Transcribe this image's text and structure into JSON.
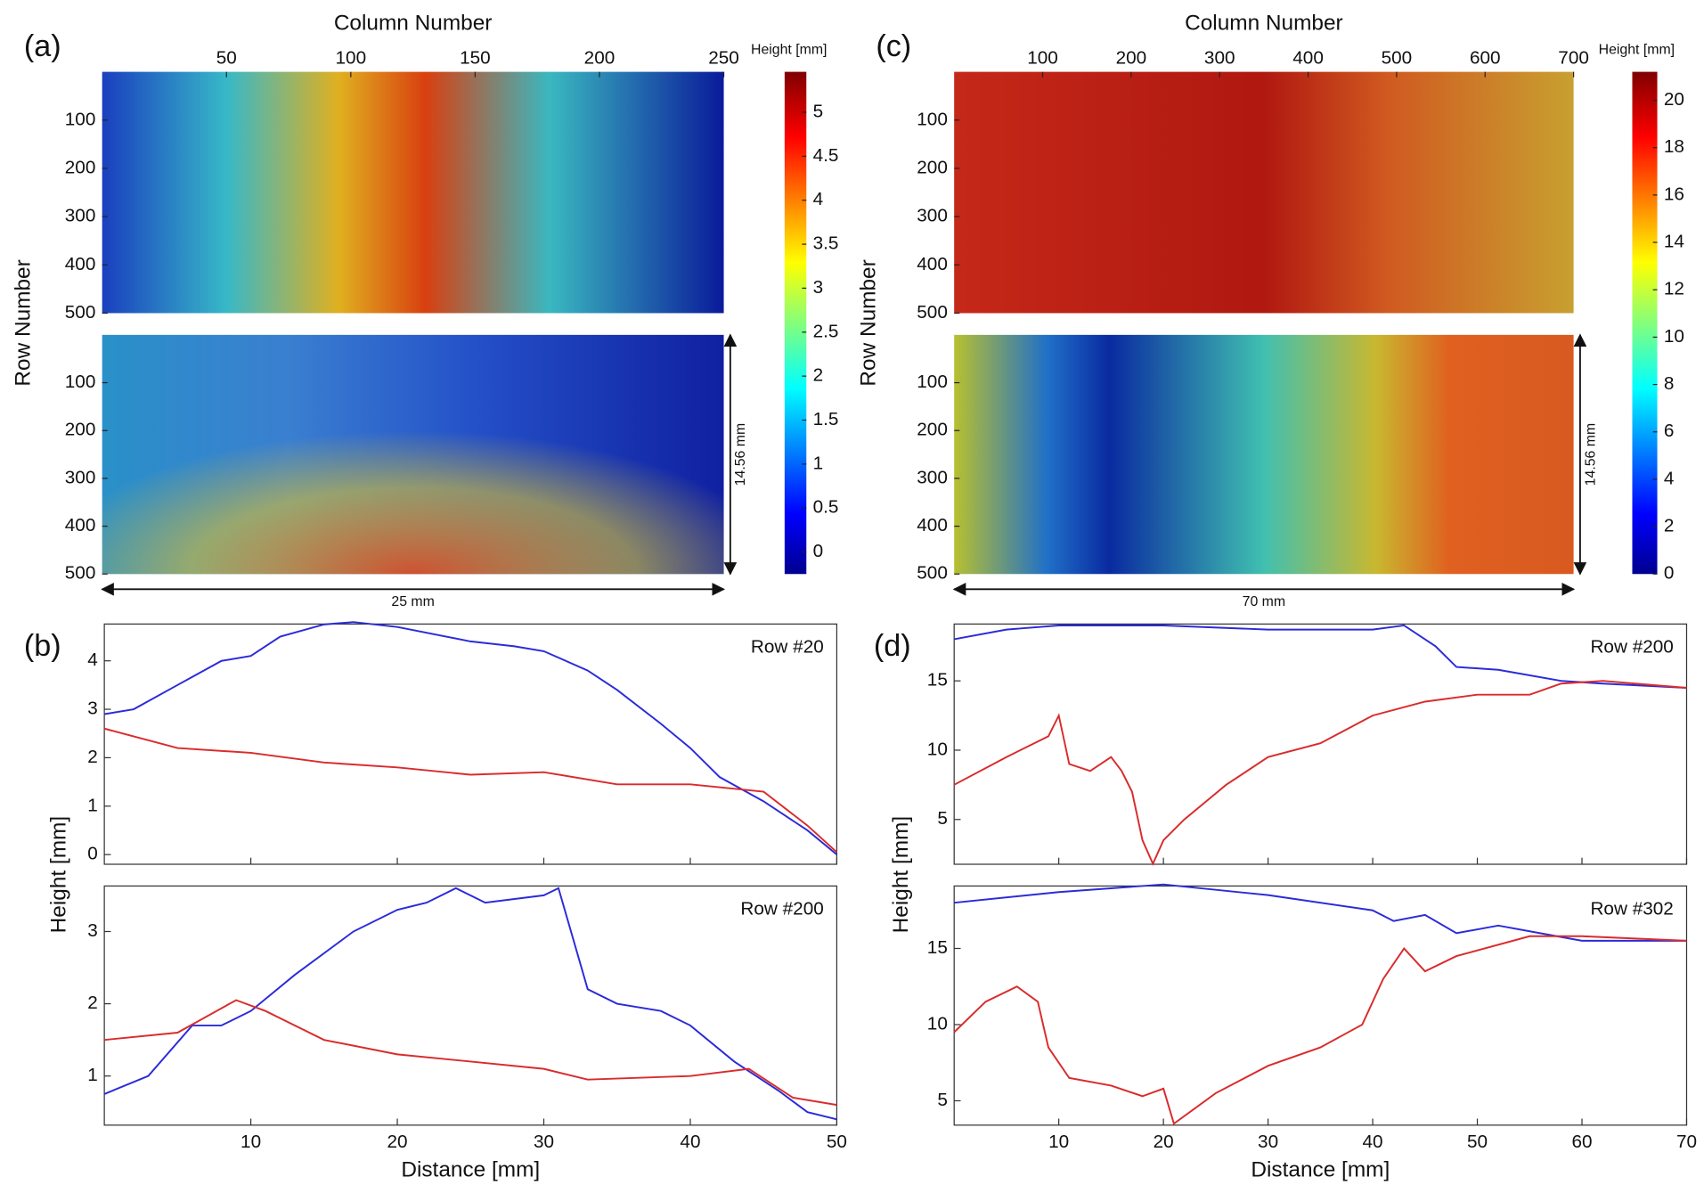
{
  "chart_data": [
    {
      "type": "heatmap",
      "panel_label": "(a)",
      "xlabel": "Column Number",
      "ylabel": "Row Number",
      "xlim": [
        0,
        250
      ],
      "xticks": [
        50,
        100,
        150,
        200,
        250
      ],
      "ylim": [
        0,
        500
      ],
      "yticks": [
        100,
        200,
        300,
        400,
        500
      ],
      "colorbar_label": "Height [mm]",
      "clim": [
        -0.25,
        5.46
      ],
      "cticks": [
        0,
        0.5,
        1,
        1.5,
        2,
        2.5,
        3,
        3.5,
        4,
        4.5,
        5
      ],
      "width_label": "25 mm",
      "height_label": "14.56 mm"
    },
    {
      "type": "line",
      "panel_label": "(b)",
      "xlabel": "Distance [mm]",
      "ylabel": "Height [mm]",
      "xlim": [
        0,
        50
      ],
      "xticks": [
        10,
        20,
        30,
        40,
        50
      ],
      "panels": [
        {
          "annotation": "Row #20",
          "ylim": [
            -0.2,
            4.76
          ],
          "yticks": [
            0,
            1,
            2,
            3,
            4
          ],
          "series": [
            {
              "color": "#2b2bd9",
              "x": [
                0,
                2,
                5,
                8,
                10,
                12,
                15,
                17,
                20,
                25,
                28,
                30,
                33,
                35,
                38,
                40,
                42,
                45,
                48,
                50
              ],
              "values": [
                2.9,
                3.0,
                3.5,
                4.0,
                4.1,
                4.5,
                4.75,
                4.8,
                4.7,
                4.4,
                4.3,
                4.2,
                3.8,
                3.4,
                2.7,
                2.2,
                1.6,
                1.1,
                0.5,
                0.0
              ]
            },
            {
              "color": "#d92b2b",
              "x": [
                0,
                5,
                10,
                15,
                20,
                25,
                30,
                35,
                40,
                45,
                48,
                50
              ],
              "values": [
                2.6,
                2.2,
                2.1,
                1.9,
                1.8,
                1.65,
                1.7,
                1.45,
                1.45,
                1.3,
                0.6,
                0.05
              ]
            }
          ]
        },
        {
          "annotation": "Row #200",
          "ylim": [
            0.32,
            3.63
          ],
          "yticks": [
            1,
            2,
            3
          ],
          "series": [
            {
              "color": "#2b2bd9",
              "x": [
                0,
                3,
                6,
                8,
                10,
                13,
                17,
                20,
                22,
                24,
                26,
                30,
                31,
                33,
                35,
                38,
                40,
                43,
                46,
                48,
                50
              ],
              "values": [
                0.75,
                1.0,
                1.7,
                1.7,
                1.9,
                2.4,
                3.0,
                3.3,
                3.4,
                3.6,
                3.4,
                3.5,
                3.6,
                2.2,
                2.0,
                1.9,
                1.7,
                1.2,
                0.8,
                0.5,
                0.4
              ]
            },
            {
              "color": "#d92b2b",
              "x": [
                0,
                5,
                9,
                11,
                15,
                20,
                25,
                30,
                33,
                40,
                44,
                47,
                50
              ],
              "values": [
                1.5,
                1.6,
                2.05,
                1.9,
                1.5,
                1.3,
                1.2,
                1.1,
                0.95,
                1.0,
                1.1,
                0.7,
                0.6
              ]
            }
          ]
        }
      ]
    },
    {
      "type": "heatmap",
      "panel_label": "(c)",
      "xlabel": "Column Number",
      "ylabel": "Row Number",
      "xlim": [
        0,
        700
      ],
      "xticks": [
        100,
        200,
        300,
        400,
        500,
        600,
        700
      ],
      "ylim": [
        0,
        500
      ],
      "yticks": [
        100,
        200,
        300,
        400,
        500
      ],
      "colorbar_label": "Height [mm]",
      "clim": [
        0,
        21.2
      ],
      "cticks": [
        0,
        2,
        4,
        6,
        8,
        10,
        12,
        14,
        16,
        18,
        20
      ],
      "width_label": "70 mm",
      "height_label": "14.56 mm"
    },
    {
      "type": "line",
      "panel_label": "(d)",
      "xlabel": "Distance [mm]",
      "ylabel": "Height [mm]",
      "xlim": [
        0,
        70
      ],
      "xticks": [
        10,
        20,
        30,
        40,
        50,
        60,
        70
      ],
      "panels": [
        {
          "annotation": "Row #200",
          "ylim": [
            1.77,
            19.1
          ],
          "yticks": [
            5,
            10,
            15
          ],
          "series": [
            {
              "color": "#2b2bd9",
              "x": [
                0,
                5,
                10,
                20,
                30,
                40,
                43,
                46,
                48,
                52,
                58,
                62,
                70
              ],
              "values": [
                18,
                18.7,
                19,
                19,
                18.7,
                18.7,
                19,
                17.5,
                16,
                15.8,
                15,
                14.8,
                14.5
              ]
            },
            {
              "color": "#d92b2b",
              "x": [
                0,
                5,
                9,
                10,
                11,
                13,
                15,
                16,
                17,
                18,
                19,
                20,
                22,
                26,
                30,
                35,
                40,
                45,
                50,
                55,
                58,
                62,
                70
              ],
              "values": [
                7.5,
                9.5,
                11,
                12.5,
                9,
                8.5,
                9.5,
                8.5,
                7,
                3.5,
                1.8,
                3.5,
                5,
                7.5,
                9.5,
                10.5,
                12.5,
                13.5,
                14,
                14,
                14.8,
                15,
                14.5
              ]
            }
          ]
        },
        {
          "annotation": "Row #302",
          "ylim": [
            3.4,
            19.1
          ],
          "yticks": [
            5,
            10,
            15
          ],
          "series": [
            {
              "color": "#2b2bd9",
              "x": [
                0,
                10,
                20,
                30,
                40,
                42,
                45,
                48,
                52,
                56,
                60,
                70
              ],
              "values": [
                18,
                18.7,
                19.2,
                18.5,
                17.5,
                16.8,
                17.2,
                16,
                16.5,
                16,
                15.5,
                15.5
              ]
            },
            {
              "color": "#d92b2b",
              "x": [
                0,
                3,
                6,
                8,
                9,
                11,
                15,
                18,
                20,
                21,
                25,
                30,
                35,
                39,
                41,
                43,
                45,
                48,
                55,
                60,
                70
              ],
              "values": [
                9.5,
                11.5,
                12.5,
                11.5,
                8.5,
                6.5,
                6,
                5.3,
                5.8,
                3.5,
                5.5,
                7.3,
                8.5,
                10,
                13,
                15,
                13.5,
                14.5,
                15.8,
                15.8,
                15.5
              ]
            }
          ]
        }
      ]
    }
  ]
}
